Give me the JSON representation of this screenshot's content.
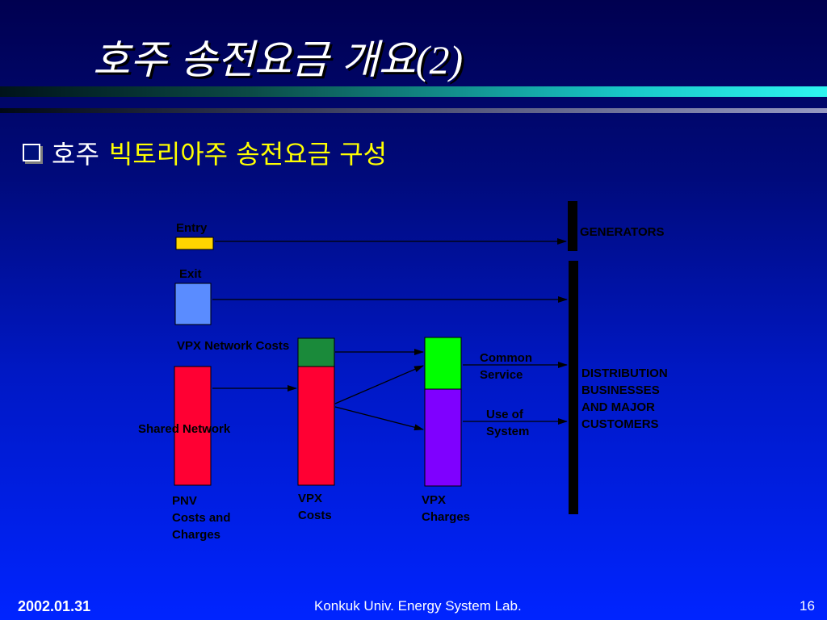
{
  "slide": {
    "title": "호주 송전요금 개요",
    "title_number": "(2)",
    "bullet_prefix": "호주",
    "bullet_text": "빅토리아주 송전요금 구성"
  },
  "diagram": {
    "entry": "Entry",
    "exit": "Exit",
    "generators": "GENERATORS",
    "vpx_network_costs": "VPX Network Costs",
    "shared_network": "Shared Network",
    "common_service": [
      "Common",
      "Service"
    ],
    "use_of_system": [
      "Use of",
      "System"
    ],
    "distribution": [
      "DISTRIBUTION",
      "BUSINESSES",
      "AND MAJOR",
      "CUSTOMERS"
    ],
    "pnv": [
      "PNV",
      "Costs and",
      "Charges"
    ],
    "vpx_costs": [
      "VPX",
      "Costs"
    ],
    "vpx_charges": [
      "VPX",
      "Charges"
    ],
    "colors": {
      "entry": "#ffd400",
      "exit": "#5a8cff",
      "red": "#ff0033",
      "dark_green": "#1a8a3a",
      "green": "#00ff00",
      "purple": "#7f00ff",
      "bar": "#000000"
    }
  },
  "footer": {
    "date": "2002.01.31",
    "center": "Konkuk Univ. Energy System Lab.",
    "page": "16"
  }
}
